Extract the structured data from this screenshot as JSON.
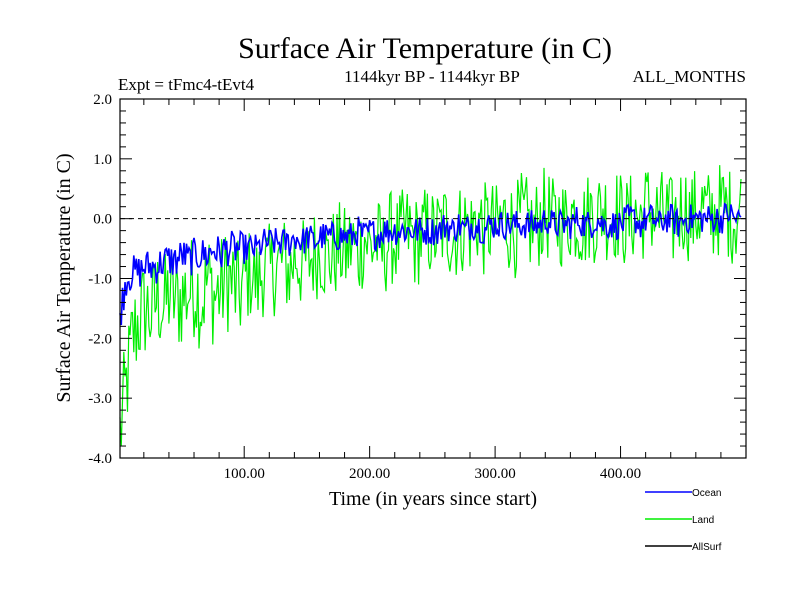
{
  "chart_data": {
    "type": "line",
    "title": "Surface Air Temperature (in C)",
    "subtitle_left": "Expt = tFmc4-tEvt4",
    "subtitle_center": "1144kyr BP - 1144kyr BP",
    "subtitle_right": "ALL_MONTHS",
    "xlabel": "Time (in years since start)",
    "ylabel": "Surface Air Temperature (in C)",
    "xlim": [
      1,
      500
    ],
    "ylim": [
      -4.0,
      2.0
    ],
    "x_ticks": [
      100,
      200,
      300,
      400
    ],
    "x_tick_labels": [
      "100.00",
      "200.00",
      "300.00",
      "400.00"
    ],
    "y_ticks": [
      -4.0,
      -3.0,
      -2.0,
      -1.0,
      0.0,
      1.0,
      2.0
    ],
    "y_tick_labels": [
      "-4.0",
      "-3.0",
      "-2.0",
      "-1.0",
      "0.0",
      "1.0",
      "2.0"
    ],
    "reference_line": {
      "y": 0.0,
      "style": "dashed"
    },
    "series": [
      {
        "name": "Land",
        "color": "#00ee00",
        "x_every": 5,
        "values": [
          -3.6,
          -2.8,
          -2.0,
          -1.7,
          -1.5,
          -1.6,
          -1.3,
          -1.5,
          -1.2,
          -1.4,
          -1.3,
          -1.2,
          -1.1,
          -1.4,
          -1.0,
          -1.3,
          -1.2,
          -1.0,
          -1.1,
          -1.3,
          -1.0,
          -0.9,
          -1.1,
          -0.8,
          -0.9,
          -0.8,
          -0.7,
          -0.9,
          -0.6,
          -0.8,
          -0.7,
          -0.6,
          -0.5,
          -0.7,
          -0.6,
          -0.5,
          -0.6,
          -0.4,
          -0.6,
          -0.3,
          -0.5,
          -0.4,
          -0.6,
          -0.3,
          -0.4,
          -0.3,
          -0.2,
          -0.4,
          -0.3,
          -0.2,
          -0.3,
          -0.2,
          -0.1,
          -0.3,
          -0.2,
          -0.1,
          -0.2,
          0.0,
          -0.2,
          -0.1,
          -0.2,
          0.0,
          -0.1,
          -0.2,
          0.0,
          -0.1,
          -0.2,
          0.0,
          0.1,
          -0.1,
          0.0,
          -0.1,
          0.1,
          0.0,
          -0.1,
          0.1,
          0.0,
          0.2,
          0.0,
          0.1,
          0.0,
          -0.1,
          0.1,
          0.0,
          0.2,
          0.1,
          0.0,
          0.1,
          -0.1,
          0.1,
          0.2,
          0.0,
          0.1,
          0.2,
          0.0,
          0.1,
          0.2,
          0.1,
          0.0,
          0.2
        ],
        "amplitude": [
          0.9,
          0.9,
          0.9,
          0.9,
          0.9,
          0.9,
          0.9,
          0.9,
          0.9,
          0.9,
          0.9,
          0.9,
          0.9,
          0.9,
          0.9,
          0.9,
          0.9,
          0.9,
          0.9,
          0.9,
          0.8,
          0.8,
          0.8,
          0.8,
          0.8,
          0.8,
          0.8,
          0.8,
          0.8,
          0.8,
          0.8,
          0.8,
          0.8,
          0.8,
          0.8,
          0.8,
          0.8,
          0.8,
          0.8,
          0.8,
          0.8,
          0.8,
          0.8,
          0.8,
          0.8,
          0.8,
          0.8,
          0.8,
          0.8,
          0.8,
          0.8,
          0.8,
          0.8,
          0.8,
          0.8,
          0.8,
          0.8,
          0.8,
          0.8,
          0.8,
          0.8,
          0.8,
          0.8,
          0.8,
          0.8,
          0.8,
          0.8,
          0.8,
          0.8,
          0.8,
          0.8,
          0.8,
          0.8,
          0.8,
          0.8,
          0.8,
          0.8,
          0.8,
          0.8,
          0.8,
          0.8,
          0.8,
          0.8,
          0.8,
          0.8,
          0.8,
          0.8,
          0.8,
          0.8,
          0.8,
          0.8,
          0.8,
          0.8,
          0.8,
          0.8,
          0.8,
          0.8,
          0.8,
          0.8,
          0.8
        ]
      },
      {
        "name": "Ocean",
        "color": "#0000ff",
        "x_every": 5,
        "values": [
          -1.6,
          -1.0,
          -0.9,
          -0.9,
          -0.8,
          -0.8,
          -0.8,
          -0.7,
          -0.7,
          -0.7,
          -0.6,
          -0.7,
          -0.6,
          -0.6,
          -0.6,
          -0.5,
          -0.6,
          -0.5,
          -0.5,
          -0.5,
          -0.5,
          -0.5,
          -0.5,
          -0.4,
          -0.4,
          -0.4,
          -0.4,
          -0.4,
          -0.3,
          -0.4,
          -0.3,
          -0.4,
          -0.3,
          -0.3,
          -0.3,
          -0.3,
          -0.3,
          -0.3,
          -0.2,
          -0.3,
          -0.2,
          -0.3,
          -0.2,
          -0.2,
          -0.2,
          -0.2,
          -0.2,
          -0.2,
          -0.2,
          -0.2,
          -0.2,
          -0.2,
          -0.1,
          -0.2,
          -0.1,
          -0.2,
          -0.1,
          -0.1,
          -0.2,
          -0.1,
          -0.1,
          -0.1,
          -0.1,
          -0.1,
          -0.1,
          -0.1,
          -0.1,
          -0.1,
          0.0,
          -0.1,
          -0.1,
          -0.1,
          -0.1,
          0.0,
          -0.1,
          -0.1,
          0.0,
          -0.1,
          -0.1,
          -0.1,
          -0.1,
          0.0,
          0.0,
          -0.1,
          0.0,
          0.0,
          -0.1,
          0.0,
          0.0,
          -0.1,
          0.0,
          0.0,
          0.0,
          0.0,
          0.0,
          0.0,
          0.0,
          0.1,
          0.0,
          0.0
        ],
        "amplitude": [
          0.3,
          0.3,
          0.3,
          0.3,
          0.3,
          0.3,
          0.3,
          0.3,
          0.3,
          0.3,
          0.3,
          0.3,
          0.3,
          0.3,
          0.3,
          0.3,
          0.3,
          0.3,
          0.3,
          0.3,
          0.25,
          0.25,
          0.25,
          0.25,
          0.25,
          0.25,
          0.25,
          0.25,
          0.25,
          0.25,
          0.25,
          0.25,
          0.25,
          0.25,
          0.25,
          0.25,
          0.25,
          0.25,
          0.25,
          0.25,
          0.25,
          0.25,
          0.25,
          0.25,
          0.25,
          0.25,
          0.25,
          0.25,
          0.25,
          0.25,
          0.25,
          0.25,
          0.25,
          0.25,
          0.25,
          0.25,
          0.25,
          0.25,
          0.25,
          0.25,
          0.25,
          0.25,
          0.25,
          0.25,
          0.25,
          0.25,
          0.25,
          0.25,
          0.25,
          0.25,
          0.25,
          0.25,
          0.25,
          0.25,
          0.25,
          0.25,
          0.25,
          0.25,
          0.25,
          0.25,
          0.25,
          0.25,
          0.25,
          0.25,
          0.25,
          0.25,
          0.25,
          0.25,
          0.25,
          0.25,
          0.25,
          0.25,
          0.25,
          0.25,
          0.25,
          0.25,
          0.25,
          0.25,
          0.25,
          0.25
        ]
      },
      {
        "name": "AllSurf",
        "color": "#000000",
        "x_every": 5,
        "values": [],
        "amplitude": []
      }
    ],
    "legend": {
      "placement": "bottom-right",
      "entries": [
        {
          "label": "Ocean",
          "color": "#0000ff"
        },
        {
          "label": "Land",
          "color": "#00ee00"
        },
        {
          "label": "AllSurf",
          "color": "#000000"
        }
      ]
    }
  }
}
